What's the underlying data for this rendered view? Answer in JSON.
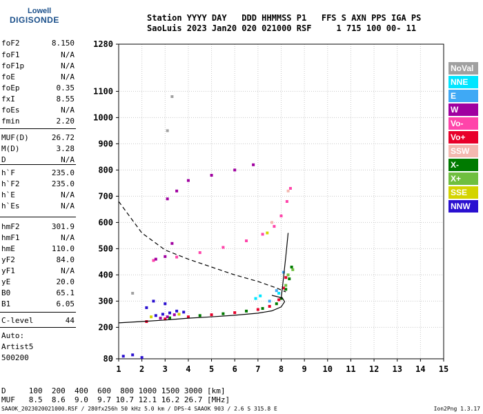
{
  "logo": {
    "line1": "Lowell",
    "line2": "DIGISONDE"
  },
  "header": {
    "line1": "Station YYYY DAY   DDD HHMMSS P1   FFS S AXN PPS IGA PS",
    "line2": "SaoLuis 2023 Jan20 020 021000 RSF     1 715 100 00- 11"
  },
  "params": [
    {
      "label": "foF2",
      "value": "8.150"
    },
    {
      "label": "foF1",
      "value": "N/A"
    },
    {
      "label": "foF1p",
      "value": "N/A"
    },
    {
      "label": "foE",
      "value": "N/A"
    },
    {
      "label": "foEp",
      "value": "0.35"
    },
    {
      "label": "fxI",
      "value": "8.55"
    },
    {
      "label": "foEs",
      "value": "N/A"
    },
    {
      "label": "fmin",
      "value": "2.20"
    },
    {
      "label": "MUF(D)",
      "value": "26.72"
    },
    {
      "label": "M(D)",
      "value": "3.28"
    },
    {
      "label": "D",
      "value": "N/A"
    },
    {
      "label": "h`F",
      "value": "235.0"
    },
    {
      "label": "h`F2",
      "value": "235.0"
    },
    {
      "label": "h`E",
      "value": "N/A"
    },
    {
      "label": "h`Es",
      "value": "N/A"
    },
    {
      "label": "hmF2",
      "value": "301.9"
    },
    {
      "label": "hmF1",
      "value": "N/A"
    },
    {
      "label": "hmE",
      "value": "110.0"
    },
    {
      "label": "yF2",
      "value": "84.0"
    },
    {
      "label": "yF1",
      "value": "N/A"
    },
    {
      "label": "yE",
      "value": "20.0"
    },
    {
      "label": "B0",
      "value": "65.1"
    },
    {
      "label": "B1",
      "value": "6.05"
    },
    {
      "label": "C-level",
      "value": "44"
    }
  ],
  "auto": {
    "line1": "Auto:",
    "line2": "Artist5",
    "line3": "500200"
  },
  "bottom_table": {
    "row1": "D     100  200  400  600  800 1000 1500 3000 [km]",
    "row2": "MUF   8.5  8.6  9.0  9.7 10.7 12.1 16.2 26.7 [MHz]"
  },
  "footer": "SAAOK_2023020021000.RSF / 280fx256h 50 kHz 5.0 km / DPS-4 SAAOK 903 / 2.6 S 315.8 E",
  "version": "Ion2Png 1.3.17",
  "legend": [
    {
      "label": "NoVal",
      "color": "#a0a0a0"
    },
    {
      "label": "NNE",
      "color": "#00e5ff"
    },
    {
      "label": "E",
      "color": "#3fa9f5"
    },
    {
      "label": "W",
      "color": "#a000a0"
    },
    {
      "label": "Vo-",
      "color": "#ff44aa"
    },
    {
      "label": "Vo+",
      "color": "#e8002a"
    },
    {
      "label": "SSW",
      "color": "#f4b8b0"
    },
    {
      "label": "X-",
      "color": "#007a00"
    },
    {
      "label": "X+",
      "color": "#6fbf3f"
    },
    {
      "label": "SSE",
      "color": "#d4d400"
    },
    {
      "label": "NNW",
      "color": "#2a10d0"
    }
  ],
  "chart_data": {
    "type": "scatter",
    "xlim": [
      1,
      15
    ],
    "ylim": [
      80,
      1280
    ],
    "x_ticks": [
      1,
      2,
      3,
      4,
      5,
      6,
      7,
      8,
      9,
      10,
      11,
      12,
      13,
      14,
      15
    ],
    "y_ticks": [
      80,
      200,
      300,
      400,
      500,
      600,
      700,
      800,
      900,
      1000,
      1100,
      1280
    ],
    "grid": true,
    "series": [
      {
        "name": "X-",
        "color": "#007a00",
        "points": [
          [
            3.2,
            236
          ],
          [
            4.5,
            245
          ],
          [
            5.5,
            252
          ],
          [
            6.5,
            262
          ],
          [
            7.2,
            272
          ],
          [
            7.8,
            290
          ],
          [
            8.0,
            310
          ],
          [
            8.2,
            345
          ],
          [
            8.35,
            385
          ],
          [
            8.45,
            430
          ]
        ]
      },
      {
        "name": "Vo+",
        "color": "#e8002a",
        "points": [
          [
            2.2,
            222
          ],
          [
            3.0,
            232
          ],
          [
            4.0,
            240
          ],
          [
            5.0,
            248
          ],
          [
            6.0,
            256
          ],
          [
            7.0,
            268
          ],
          [
            7.5,
            280
          ],
          [
            7.9,
            305
          ],
          [
            8.1,
            350
          ],
          [
            8.2,
            390
          ]
        ]
      },
      {
        "name": "Vo-",
        "color": "#ff44aa",
        "points": [
          [
            2.5,
            455
          ],
          [
            3.5,
            468
          ],
          [
            4.5,
            485
          ],
          [
            5.5,
            505
          ],
          [
            6.5,
            530
          ],
          [
            7.2,
            555
          ],
          [
            7.7,
            585
          ],
          [
            8.0,
            625
          ],
          [
            8.25,
            680
          ],
          [
            8.4,
            730
          ]
        ]
      },
      {
        "name": "W",
        "color": "#a000a0",
        "points": [
          [
            2.8,
            235
          ],
          [
            3.1,
            240
          ],
          [
            3.4,
            248
          ],
          [
            2.6,
            460
          ],
          [
            3.0,
            470
          ],
          [
            3.3,
            520
          ],
          [
            3.1,
            690
          ],
          [
            3.5,
            720
          ],
          [
            4.0,
            760
          ],
          [
            5.0,
            780
          ],
          [
            6.0,
            800
          ],
          [
            6.8,
            820
          ]
        ]
      },
      {
        "name": "NNW",
        "color": "#2a10d0",
        "points": [
          [
            2.6,
            245
          ],
          [
            2.9,
            250
          ],
          [
            3.2,
            255
          ],
          [
            3.5,
            262
          ],
          [
            3.8,
            258
          ],
          [
            2.2,
            275
          ],
          [
            2.5,
            300
          ],
          [
            3.0,
            290
          ],
          [
            1.2,
            90
          ],
          [
            1.6,
            95
          ],
          [
            2.0,
            85
          ]
        ]
      },
      {
        "name": "X+",
        "color": "#6fbf3f",
        "points": [
          [
            8.5,
            420
          ],
          [
            8.3,
            400
          ],
          [
            8.2,
            360
          ]
        ]
      },
      {
        "name": "NNE",
        "color": "#00e5ff",
        "points": [
          [
            7.1,
            320
          ],
          [
            7.9,
            330
          ],
          [
            6.9,
            310
          ]
        ]
      },
      {
        "name": "E",
        "color": "#3fa9f5",
        "points": [
          [
            7.5,
            300
          ],
          [
            7.8,
            340
          ],
          [
            8.1,
            410
          ]
        ]
      },
      {
        "name": "SSE",
        "color": "#d4d400",
        "points": [
          [
            2.4,
            240
          ],
          [
            3.6,
            250
          ],
          [
            7.4,
            560
          ]
        ]
      },
      {
        "name": "SSW",
        "color": "#f4b8b0",
        "points": [
          [
            8.3,
            720
          ],
          [
            7.6,
            600
          ]
        ]
      },
      {
        "name": "NoVal",
        "color": "#a0a0a0",
        "points": [
          [
            3.3,
            1080
          ],
          [
            3.1,
            950
          ],
          [
            1.6,
            330
          ]
        ]
      }
    ],
    "lines": [
      {
        "name": "profile",
        "style": "solid",
        "color": "#000000",
        "points": [
          [
            1,
            217
          ],
          [
            2,
            222
          ],
          [
            3,
            228
          ],
          [
            4,
            235
          ],
          [
            5,
            240
          ],
          [
            6,
            246
          ],
          [
            7,
            254
          ],
          [
            7.6,
            263
          ],
          [
            8.0,
            278
          ],
          [
            8.15,
            298
          ],
          [
            8.05,
            312
          ],
          [
            7.6,
            322
          ]
        ]
      },
      {
        "name": "mode-trace",
        "style": "solid",
        "color": "#000000",
        "points": [
          [
            8.0,
            310
          ],
          [
            8.1,
            390
          ],
          [
            8.2,
            470
          ],
          [
            8.3,
            560
          ]
        ]
      },
      {
        "name": "muf-curve",
        "style": "dashed",
        "color": "#000000",
        "points": [
          [
            1,
            680
          ],
          [
            2,
            560
          ],
          [
            3,
            495
          ],
          [
            4,
            460
          ],
          [
            5,
            430
          ],
          [
            6,
            400
          ],
          [
            7,
            375
          ],
          [
            7.8,
            350
          ],
          [
            8.2,
            335
          ]
        ]
      }
    ]
  }
}
